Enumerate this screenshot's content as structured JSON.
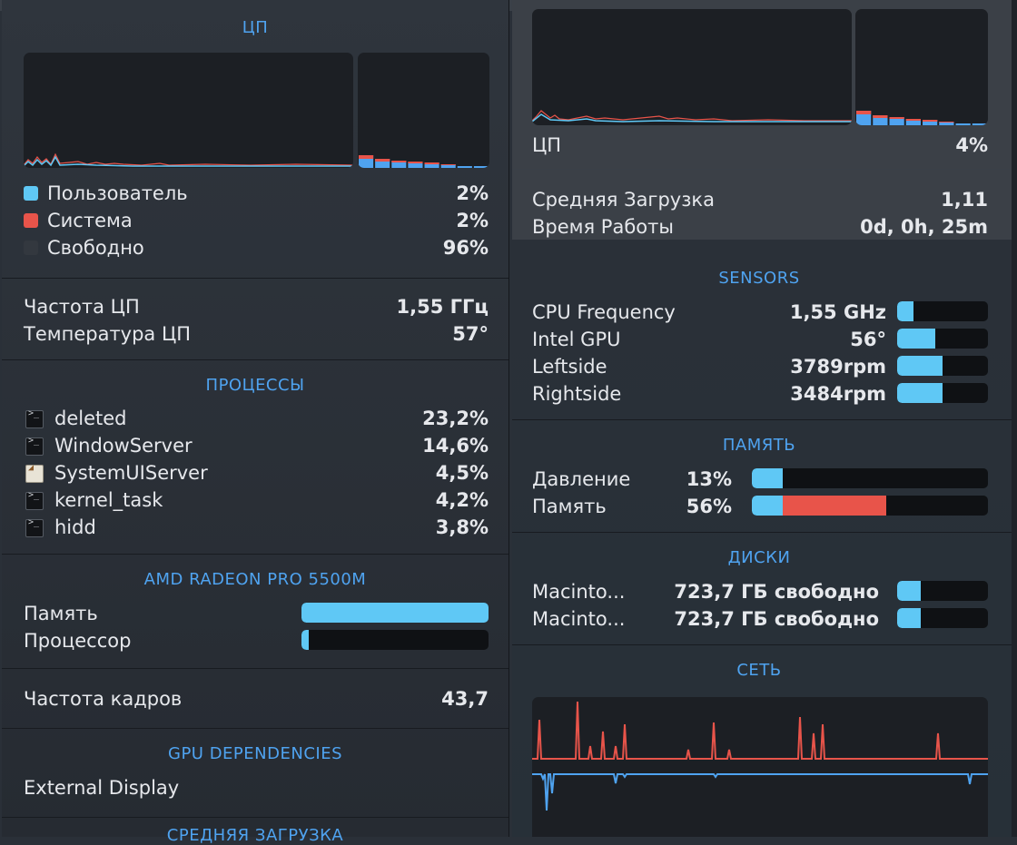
{
  "left": {
    "cpu": {
      "title": "ЦП",
      "legend": [
        {
          "label": "Пользователь",
          "value": "2%",
          "color": "#5fc8f5"
        },
        {
          "label": "Система",
          "value": "2%",
          "color": "#e8544a"
        },
        {
          "label": "Свободно",
          "value": "96%",
          "color": "#3a3f46"
        }
      ],
      "freq_label": "Частота ЦП",
      "freq_value": "1,55 ГГц",
      "temp_label": "Температура ЦП",
      "temp_value": "57°"
    },
    "processes": {
      "title": "ПРОЦЕССЫ",
      "items": [
        {
          "name": "deleted",
          "value": "23,2%",
          "icon": "terminal-icon"
        },
        {
          "name": "WindowServer",
          "value": "14,6%",
          "icon": "terminal-icon"
        },
        {
          "name": "SystemUIServer",
          "value": "4,5%",
          "icon": "app-icon"
        },
        {
          "name": "kernel_task",
          "value": "4,2%",
          "icon": "terminal-icon"
        },
        {
          "name": "hidd",
          "value": "3,8%",
          "icon": "terminal-icon"
        }
      ]
    },
    "gpu": {
      "title": "AMD RADEON PRO 5500M",
      "memory_label": "Память",
      "memory_level": 1.0,
      "processor_label": "Процессор",
      "processor_level": 0.04
    },
    "fps_label": "Частота кадров",
    "fps_value": "43,7",
    "gpu_deps": {
      "title": "GPU DEPENDENCIES",
      "item": "External Display"
    },
    "next_title": "СРЕДНЯЯ ЗАГРУЗКА"
  },
  "right": {
    "cpu_label": "ЦП",
    "cpu_value": "4%",
    "load_label": "Средняя Загрузка",
    "load_value": "1,11",
    "uptime_label": "Время Работы",
    "uptime_value": "0d, 0h, 25m",
    "sensors": {
      "title": "SENSORS",
      "items": [
        {
          "label": "CPU Frequency",
          "value": "1,55 GHz",
          "level": 0.18
        },
        {
          "label": "Intel GPU",
          "value": "56°",
          "level": 0.42
        },
        {
          "label": "Leftside",
          "value": "3789rpm",
          "level": 0.5
        },
        {
          "label": "Rightside",
          "value": "3484rpm",
          "level": 0.5
        }
      ]
    },
    "memory": {
      "title": "ПАМЯТЬ",
      "pressure_label": "Давление",
      "pressure_value": "13%",
      "pressure_level": 0.13,
      "mem_label": "Память",
      "mem_value": "56%",
      "mem_app_level": 0.13,
      "mem_wired_level": 0.44
    },
    "disks": {
      "title": "ДИСКИ",
      "items": [
        {
          "label": "Macinto...",
          "value": "723,7 ГБ свободно",
          "level": 0.26
        },
        {
          "label": "Macinto...",
          "value": "723,7 ГБ свободно",
          "level": 0.26
        }
      ]
    },
    "network": {
      "title": "СЕТЬ"
    }
  },
  "colors": {
    "user": "#5fc8f5",
    "system": "#e8544a",
    "accent": "#4fa3f0"
  }
}
